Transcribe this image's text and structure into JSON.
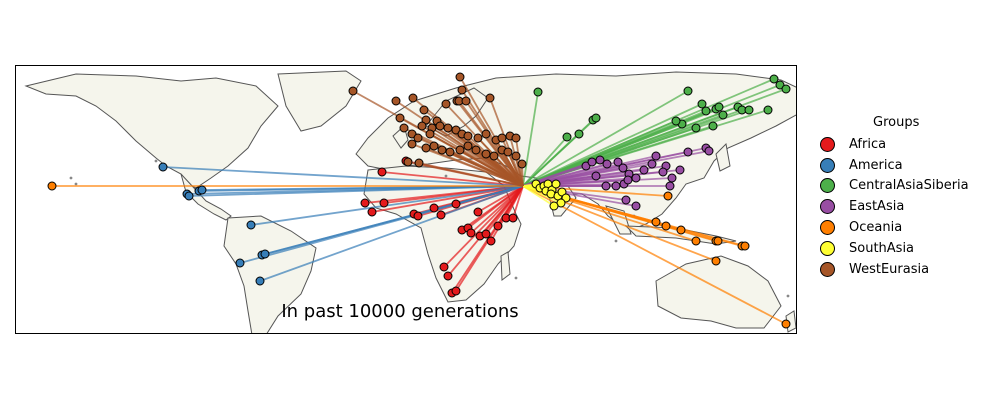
{
  "caption": "In past 10000 generations",
  "legend": {
    "title": "Groups",
    "items": [
      {
        "label": "Africa",
        "color": "#e41a1c"
      },
      {
        "label": "America",
        "color": "#377eb8"
      },
      {
        "label": "CentralAsiaSiberia",
        "color": "#4daf4a"
      },
      {
        "label": "EastAsia",
        "color": "#984ea3"
      },
      {
        "label": "Oceania",
        "color": "#ff7f00"
      },
      {
        "label": "SouthAsia",
        "color": "#ffff33"
      },
      {
        "label": "WestEurasia",
        "color": "#a65628"
      }
    ]
  },
  "land_color": "#f5f5ec",
  "coast_color": "#555555"
}
